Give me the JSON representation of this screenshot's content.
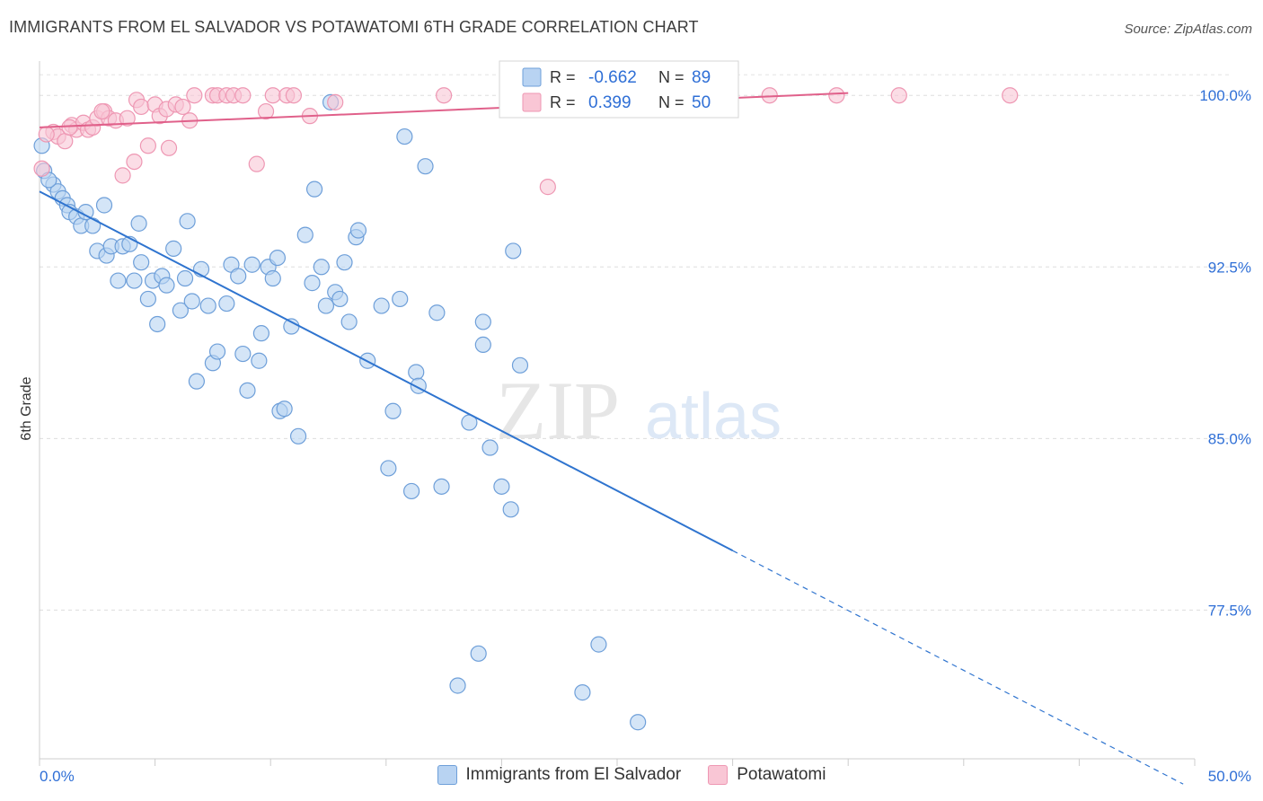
{
  "title": "IMMIGRANTS FROM EL SALVADOR VS POTAWATOMI 6TH GRADE CORRELATION CHART",
  "source": "Source: ZipAtlas.com",
  "watermark": {
    "zip": "ZIP",
    "atlas": "atlas"
  },
  "chart_data": {
    "type": "scatter",
    "xlabel": "",
    "ylabel": "6th Grade",
    "xlim": [
      0,
      50
    ],
    "ylim": [
      71.0,
      101.5
    ],
    "x_tick_labels": [
      "0.0%",
      "50.0%"
    ],
    "y_ticks": [
      77.5,
      85.0,
      92.5,
      100.0
    ],
    "y_tick_labels": [
      "77.5%",
      "85.0%",
      "92.5%",
      "100.0%"
    ],
    "grid": true,
    "legend_placement": "top-center",
    "colors": {
      "blue_fill": "#b8d3f2",
      "blue_stroke": "#6e9fd9",
      "blue_line": "#2f74cf",
      "pink_fill": "#f9c6d5",
      "pink_stroke": "#ee97b3",
      "pink_line": "#e0608a",
      "value_text": "#2f6fd6"
    },
    "stats_legend": [
      {
        "r_label": "R =",
        "r_value": "-0.662",
        "n_label": "N =",
        "n_value": "89",
        "color": "blue"
      },
      {
        "r_label": "R =",
        "r_value": "0.399",
        "n_label": "N =",
        "n_value": "50",
        "color": "pink"
      }
    ],
    "series": [
      {
        "name": "Immigrants from El Salvador",
        "color": "blue",
        "trend": {
          "x0": 0,
          "y0": 95.8,
          "x1": 30,
          "y1": 80.1,
          "dash_from": 30,
          "dash_to": 49.5
        },
        "points": [
          [
            0.1,
            97.8
          ],
          [
            0.2,
            96.7
          ],
          [
            0.6,
            96.1
          ],
          [
            0.8,
            95.8
          ],
          [
            1.0,
            95.5
          ],
          [
            1.2,
            95.2
          ],
          [
            1.3,
            94.9
          ],
          [
            1.6,
            94.7
          ],
          [
            1.8,
            94.3
          ],
          [
            2.0,
            94.9
          ],
          [
            2.3,
            94.3
          ],
          [
            2.5,
            93.2
          ],
          [
            2.8,
            95.2
          ],
          [
            2.9,
            93.0
          ],
          [
            3.1,
            93.4
          ],
          [
            3.4,
            91.9
          ],
          [
            3.6,
            93.4
          ],
          [
            3.9,
            93.5
          ],
          [
            4.1,
            91.9
          ],
          [
            4.3,
            94.4
          ],
          [
            4.4,
            92.7
          ],
          [
            4.7,
            91.1
          ],
          [
            4.9,
            91.9
          ],
          [
            5.1,
            90.0
          ],
          [
            5.3,
            92.1
          ],
          [
            5.5,
            91.7
          ],
          [
            5.8,
            93.3
          ],
          [
            6.1,
            90.6
          ],
          [
            6.3,
            92.0
          ],
          [
            6.4,
            94.5
          ],
          [
            6.6,
            91.0
          ],
          [
            6.8,
            87.5
          ],
          [
            7.0,
            92.4
          ],
          [
            7.3,
            90.8
          ],
          [
            7.5,
            88.3
          ],
          [
            7.7,
            88.8
          ],
          [
            8.1,
            90.9
          ],
          [
            8.3,
            92.6
          ],
          [
            8.6,
            92.1
          ],
          [
            8.8,
            88.7
          ],
          [
            9.0,
            87.1
          ],
          [
            9.2,
            92.6
          ],
          [
            9.5,
            88.4
          ],
          [
            9.6,
            89.6
          ],
          [
            9.9,
            92.5
          ],
          [
            10.1,
            92.0
          ],
          [
            10.3,
            92.9
          ],
          [
            10.4,
            86.2
          ],
          [
            10.6,
            86.3
          ],
          [
            10.9,
            89.9
          ],
          [
            11.2,
            85.1
          ],
          [
            11.5,
            93.9
          ],
          [
            11.8,
            91.8
          ],
          [
            11.9,
            95.9
          ],
          [
            12.2,
            92.5
          ],
          [
            12.4,
            90.8
          ],
          [
            12.6,
            99.7
          ],
          [
            12.8,
            91.4
          ],
          [
            13.0,
            91.1
          ],
          [
            13.2,
            92.7
          ],
          [
            13.4,
            90.1
          ],
          [
            13.7,
            93.8
          ],
          [
            13.8,
            94.1
          ],
          [
            14.2,
            88.4
          ],
          [
            14.8,
            90.8
          ],
          [
            15.1,
            83.7
          ],
          [
            15.3,
            86.2
          ],
          [
            15.6,
            91.1
          ],
          [
            15.8,
            98.2
          ],
          [
            16.1,
            82.7
          ],
          [
            16.3,
            87.9
          ],
          [
            16.4,
            87.3
          ],
          [
            16.7,
            96.9
          ],
          [
            17.2,
            90.5
          ],
          [
            17.4,
            82.9
          ],
          [
            18.6,
            85.7
          ],
          [
            19.0,
            75.6
          ],
          [
            19.2,
            90.1
          ],
          [
            19.2,
            89.1
          ],
          [
            19.5,
            84.6
          ],
          [
            20.0,
            82.9
          ],
          [
            20.4,
            81.9
          ],
          [
            20.5,
            93.2
          ],
          [
            20.8,
            88.2
          ],
          [
            23.5,
            73.9
          ],
          [
            24.2,
            76.0
          ],
          [
            25.9,
            72.6
          ],
          [
            18.1,
            74.2
          ],
          [
            0.4,
            96.3
          ]
        ]
      },
      {
        "name": "Potawatomi",
        "color": "pink",
        "trend": {
          "x0": 0,
          "y0": 98.6,
          "x1": 35,
          "y1": 100.1
        },
        "points": [
          [
            0.1,
            96.8
          ],
          [
            0.6,
            98.4
          ],
          [
            0.8,
            98.2
          ],
          [
            1.1,
            98.0
          ],
          [
            1.4,
            98.7
          ],
          [
            1.6,
            98.5
          ],
          [
            1.9,
            98.8
          ],
          [
            2.1,
            98.5
          ],
          [
            2.3,
            98.6
          ],
          [
            2.5,
            99.0
          ],
          [
            2.8,
            99.3
          ],
          [
            3.0,
            99.0
          ],
          [
            3.3,
            98.9
          ],
          [
            3.6,
            96.5
          ],
          [
            3.8,
            99.0
          ],
          [
            4.1,
            97.1
          ],
          [
            4.2,
            99.8
          ],
          [
            4.4,
            99.5
          ],
          [
            4.7,
            97.8
          ],
          [
            5.0,
            99.6
          ],
          [
            5.2,
            99.1
          ],
          [
            5.5,
            99.4
          ],
          [
            5.6,
            97.7
          ],
          [
            5.9,
            99.6
          ],
          [
            6.2,
            99.5
          ],
          [
            6.5,
            98.9
          ],
          [
            6.7,
            100.0
          ],
          [
            7.5,
            100.0
          ],
          [
            7.7,
            100.0
          ],
          [
            8.1,
            100.0
          ],
          [
            8.4,
            100.0
          ],
          [
            8.8,
            100.0
          ],
          [
            9.4,
            97.0
          ],
          [
            9.8,
            99.3
          ],
          [
            10.1,
            100.0
          ],
          [
            10.7,
            100.0
          ],
          [
            11.0,
            100.0
          ],
          [
            11.7,
            99.1
          ],
          [
            12.8,
            99.7
          ],
          [
            17.5,
            100.0
          ],
          [
            20.5,
            100.0
          ],
          [
            22.0,
            96.0
          ],
          [
            25.5,
            100.0
          ],
          [
            31.6,
            100.0
          ],
          [
            34.5,
            100.0
          ],
          [
            37.2,
            100.0
          ],
          [
            42.0,
            100.0
          ],
          [
            0.3,
            98.3
          ],
          [
            1.3,
            98.6
          ],
          [
            2.7,
            99.3
          ]
        ]
      }
    ]
  }
}
